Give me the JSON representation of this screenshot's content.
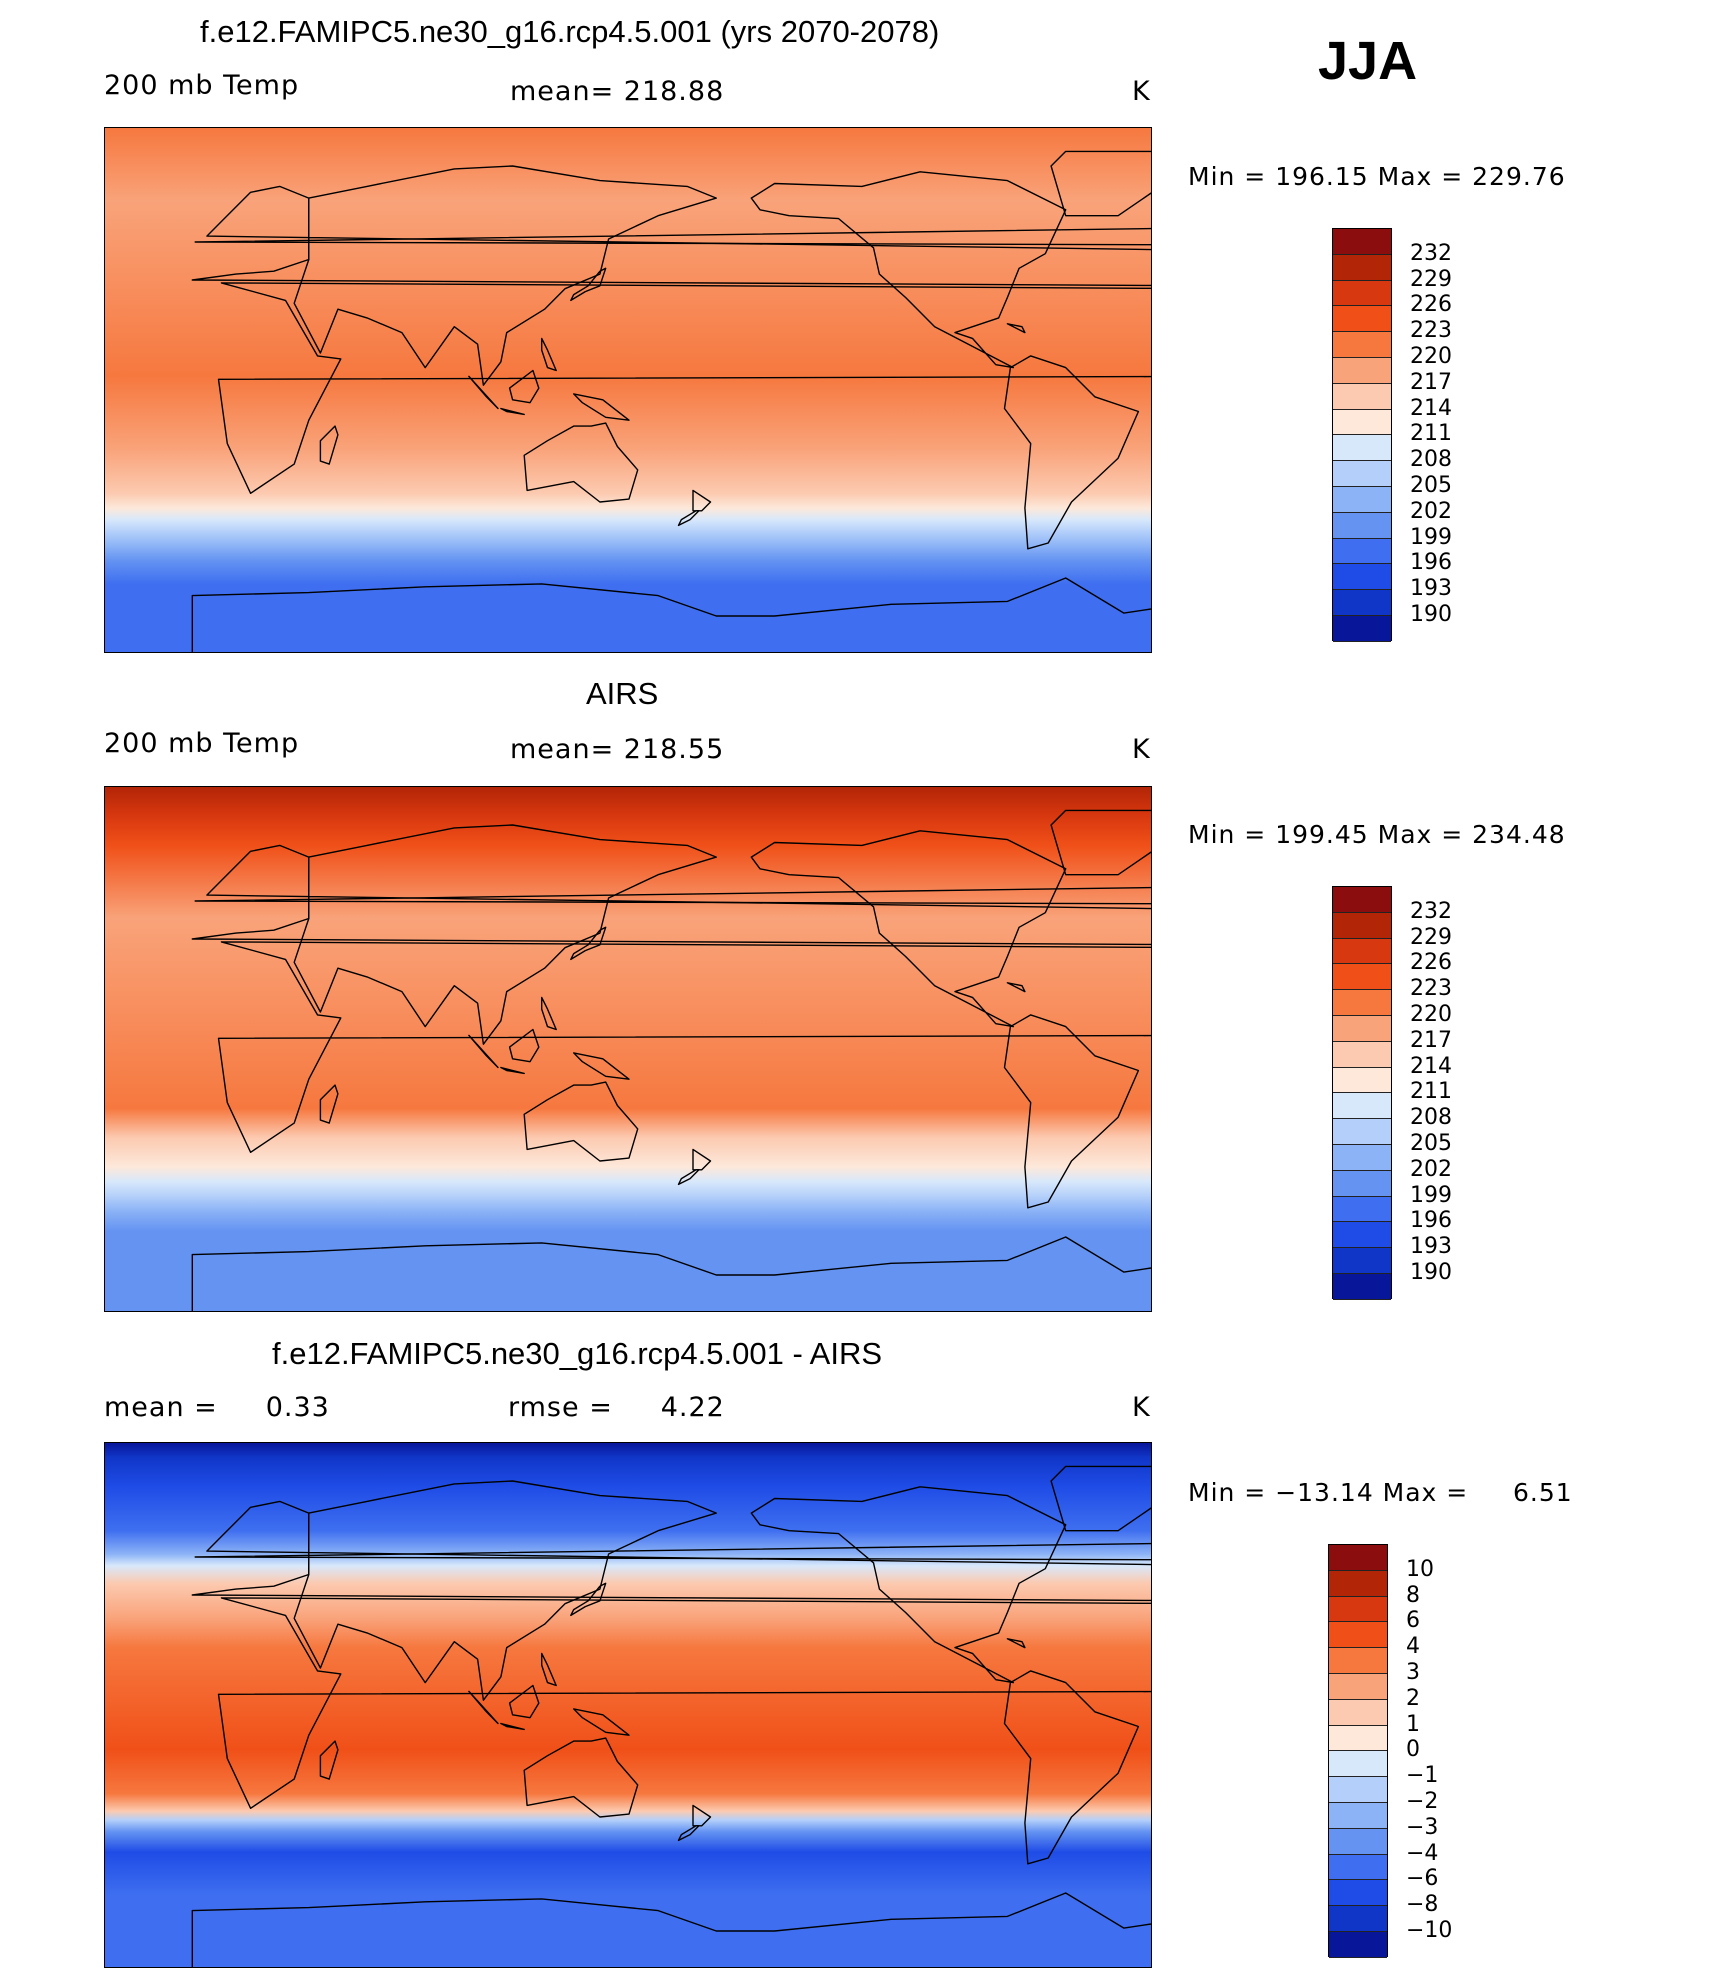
{
  "season": "JJA",
  "panels": [
    {
      "title": "f.e12.FAMIPC5.ne30_g16.rcp4.5.001 (yrs 2070-2078)",
      "left_label": "200 mb Temp",
      "center_label": "mean= 218.88",
      "right_label": "K",
      "minmax": "Min = 196.15 Max = 229.76",
      "colorbar_labels": [
        "232",
        "229",
        "226",
        "223",
        "220",
        "217",
        "214",
        "211",
        "208",
        "205",
        "202",
        "199",
        "196",
        "193",
        "190"
      ],
      "colorbar_colors": [
        "#8c0d0d",
        "#b22507",
        "#d8380f",
        "#f05018",
        "#f6783f",
        "#f9a37a",
        "#fccab0",
        "#fde8da",
        "#d8e8fb",
        "#b4d0fa",
        "#8cb3f6",
        "#6493f2",
        "#3f6ff0",
        "#1f4ce6",
        "#1036c8",
        "#08169a"
      ],
      "map_bands": [
        {
          "lat": 90,
          "color": "#f6783f"
        },
        {
          "lat": 65,
          "color": "#f9a37a"
        },
        {
          "lat": 5,
          "color": "#f6783f"
        },
        {
          "lat": -20,
          "color": "#f9a37a"
        },
        {
          "lat": -35,
          "color": "#fccab0"
        },
        {
          "lat": -40,
          "color": "#fde8da"
        },
        {
          "lat": -44,
          "color": "#d8e8fb"
        },
        {
          "lat": -48,
          "color": "#b4d0fa"
        },
        {
          "lat": -53,
          "color": "#8cb3f6"
        },
        {
          "lat": -58,
          "color": "#6493f2"
        },
        {
          "lat": -66,
          "color": "#3f6ff0"
        },
        {
          "lat": -90,
          "color": "#3f6ff0"
        }
      ]
    },
    {
      "title": "AIRS",
      "left_label": "200 mb Temp",
      "center_label": "mean= 218.55",
      "right_label": "K",
      "minmax": "Min = 199.45 Max = 234.48",
      "colorbar_labels": [
        "232",
        "229",
        "226",
        "223",
        "220",
        "217",
        "214",
        "211",
        "208",
        "205",
        "202",
        "199",
        "196",
        "193",
        "190"
      ],
      "colorbar_colors": [
        "#8c0d0d",
        "#b22507",
        "#d8380f",
        "#f05018",
        "#f6783f",
        "#f9a37a",
        "#fccab0",
        "#fde8da",
        "#d8e8fb",
        "#b4d0fa",
        "#8cb3f6",
        "#6493f2",
        "#3f6ff0",
        "#1f4ce6",
        "#1036c8",
        "#08169a"
      ],
      "map_bands": [
        {
          "lat": 90,
          "color": "#b22507"
        },
        {
          "lat": 80,
          "color": "#d8380f"
        },
        {
          "lat": 70,
          "color": "#f05018"
        },
        {
          "lat": 45,
          "color": "#f9a37a"
        },
        {
          "lat": -20,
          "color": "#f6783f"
        },
        {
          "lat": -30,
          "color": "#fccab0"
        },
        {
          "lat": -40,
          "color": "#fde8da"
        },
        {
          "lat": -45,
          "color": "#d8e8fb"
        },
        {
          "lat": -50,
          "color": "#b4d0fa"
        },
        {
          "lat": -55,
          "color": "#8cb3f6"
        },
        {
          "lat": -62,
          "color": "#6493f2"
        },
        {
          "lat": -90,
          "color": "#6493f2"
        }
      ]
    },
    {
      "title": "f.e12.FAMIPC5.ne30_g16.rcp4.5.001 - AIRS",
      "left_label": "mean =     0.33",
      "center_label": "rmse =     4.22",
      "right_label": "K",
      "minmax": "Min = −13.14 Max =     6.51",
      "colorbar_labels": [
        "10",
        "8",
        "6",
        "4",
        "3",
        "2",
        "1",
        "0",
        "−1",
        "−2",
        "−3",
        "−4",
        "−6",
        "−8",
        "−10"
      ],
      "colorbar_colors": [
        "#8c0d0d",
        "#b22507",
        "#d8380f",
        "#f05018",
        "#f6783f",
        "#f9a37a",
        "#fccab0",
        "#fde8da",
        "#d8e8fb",
        "#b4d0fa",
        "#8cb3f6",
        "#6493f2",
        "#3f6ff0",
        "#1f4ce6",
        "#1036c8",
        "#08169a"
      ],
      "map_bands": [
        {
          "lat": 90,
          "color": "#08169a"
        },
        {
          "lat": 85,
          "color": "#1036c8"
        },
        {
          "lat": 75,
          "color": "#1f4ce6"
        },
        {
          "lat": 60,
          "color": "#3f6ff0"
        },
        {
          "lat": 52,
          "color": "#8cb3f6"
        },
        {
          "lat": 48,
          "color": "#d8e8fb"
        },
        {
          "lat": 42,
          "color": "#fccab0"
        },
        {
          "lat": 30,
          "color": "#f9a37a"
        },
        {
          "lat": 20,
          "color": "#f6783f"
        },
        {
          "lat": -15,
          "color": "#f05018"
        },
        {
          "lat": -30,
          "color": "#f6783f"
        },
        {
          "lat": -36,
          "color": "#fccab0"
        },
        {
          "lat": -39,
          "color": "#b4d0fa"
        },
        {
          "lat": -43,
          "color": "#6493f2"
        },
        {
          "lat": -50,
          "color": "#1f4ce6"
        },
        {
          "lat": -65,
          "color": "#3f6ff0"
        },
        {
          "lat": -90,
          "color": "#3f6ff0"
        }
      ]
    }
  ]
}
